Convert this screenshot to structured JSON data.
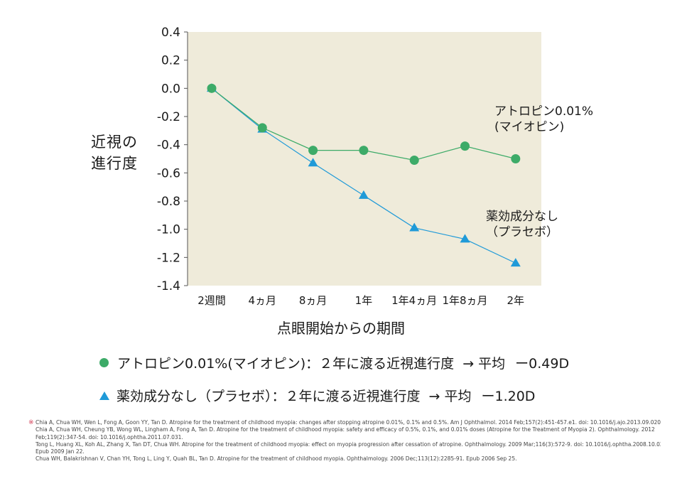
{
  "chart_data": {
    "type": "line",
    "categories": [
      "2週間",
      "4ヵ月",
      "8ヵ月",
      "1年",
      "1年4ヵ月",
      "1年8ヵ月",
      "2年"
    ],
    "series": [
      {
        "name": "アトロピン0.01%\n(マイオピン)",
        "marker": "circle",
        "color": "#3dab68",
        "values": [
          0.0,
          -0.28,
          -0.44,
          -0.44,
          -0.51,
          -0.41,
          -0.5
        ]
      },
      {
        "name": "薬効成分なし\n（プラセボ）",
        "marker": "triangle",
        "color": "#1f9ad8",
        "values": [
          0.0,
          -0.29,
          -0.53,
          -0.76,
          -0.99,
          -1.07,
          -1.24
        ]
      }
    ],
    "yticks": [
      "0.4",
      "0.2",
      "0.0",
      "-0.2",
      "-0.4",
      "-0.6",
      "-0.8",
      "-1.0",
      "-1.2",
      "-1.4"
    ],
    "ylim": [
      -1.4,
      0.4
    ],
    "ylabel": [
      "近視の",
      "進行度"
    ],
    "xlabel": "点眼開始からの期間",
    "grid": false,
    "plot_background": "#efebda"
  },
  "annotations": {
    "atropine": [
      "アトロピン0.01%",
      "(マイオピン)"
    ],
    "placebo": [
      "薬効成分なし",
      "（プラセボ）"
    ]
  },
  "legend": {
    "atropine": {
      "label": "アトロピン0.01%(マイオピン)：２年に渡る近視進行度",
      "arrow": "→ 平均",
      "value": "ー0.49D"
    },
    "placebo": {
      "label": "薬効成分なし（プラセボ）：２年に渡る近視進行度",
      "arrow": "→ 平均",
      "value": "ー1.20D"
    }
  },
  "references": {
    "mark": "※",
    "lines": [
      "Chia A, Chua WH, Wen L, Fong A, Goon YY, Tan D. Atropine for the treatment of childhood myopia: changes after stopping atropine 0.01%, 0.1% and 0.5%. Am J Ophthalmol. 2014 Feb;157(2):451-457.e1. doi: 10.1016/j.ajo.2013.09.020.",
      "Chia A, Chua WH, Cheung YB, Wong WL, Lingham A, Fong A, Tan D. Atropine for the treatment of childhood myopia: safety and efficacy of 0.5%, 0.1%, and 0.01% doses (Atropine for the Treatment of Myopia 2). Ophthalmology. 2012",
      "Feb;119(2):347-54. doi: 10.1016/j.ophtha.2011.07.031.",
      "Tong L, Huang XL, Koh AL, Zhang X, Tan DT, Chua WH. Atropine for the treatment of childhood myopia: effect on myopia progression after cessation of atropine. Ophthalmology. 2009 Mar;116(3):572-9. doi: 10.1016/j.ophtha.2008.10.020.",
      "Epub 2009 Jan 22.",
      "Chua WH, Balakrishnan V, Chan YH, Tong L, Ling Y, Quah BL, Tan D. Atropine for the treatment of childhood myopia. Ophthalmology. 2006 Dec;113(12):2285-91. Epub 2006 Sep 25."
    ]
  }
}
